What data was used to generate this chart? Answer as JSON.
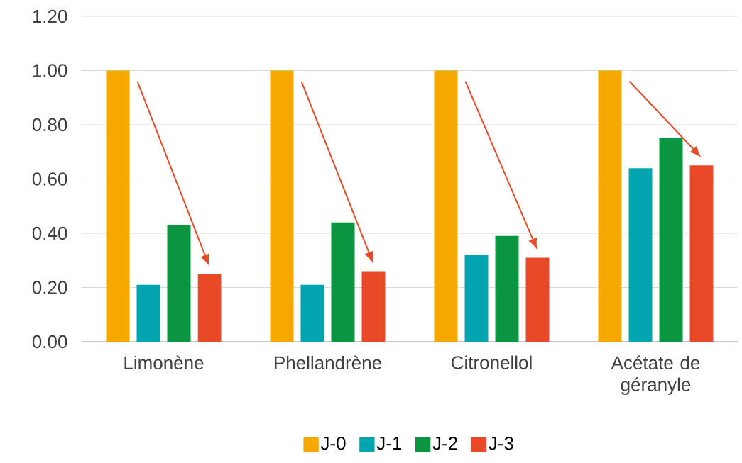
{
  "chart_data": {
    "type": "bar",
    "categories": [
      "Limonène",
      "Phellandrène",
      "Citronellol",
      "Acétate de géranyle"
    ],
    "series": [
      {
        "name": "J-0",
        "color": "#f5a800",
        "values": [
          1.0,
          1.0,
          1.0,
          1.0
        ]
      },
      {
        "name": "J-1",
        "color": "#00a5b0",
        "values": [
          0.21,
          0.21,
          0.32,
          0.64
        ]
      },
      {
        "name": "J-2",
        "color": "#0a9640",
        "values": [
          0.43,
          0.44,
          0.39,
          0.75
        ]
      },
      {
        "name": "J-3",
        "color": "#e84a27",
        "values": [
          0.25,
          0.26,
          0.31,
          0.65
        ]
      }
    ],
    "ylim": [
      0,
      1.2
    ],
    "yticks": [
      {
        "value": 0,
        "label": "0.00"
      },
      {
        "value": 0.2,
        "label": "0.20"
      },
      {
        "value": 0.4,
        "label": "0.40"
      },
      {
        "value": 0.6,
        "label": "0.60"
      },
      {
        "value": 0.8,
        "label": "0.80"
      },
      {
        "value": 1.0,
        "label": "1.00"
      },
      {
        "value": 1.2,
        "label": "1.20"
      }
    ],
    "grid": "y",
    "legend": "bottom"
  }
}
